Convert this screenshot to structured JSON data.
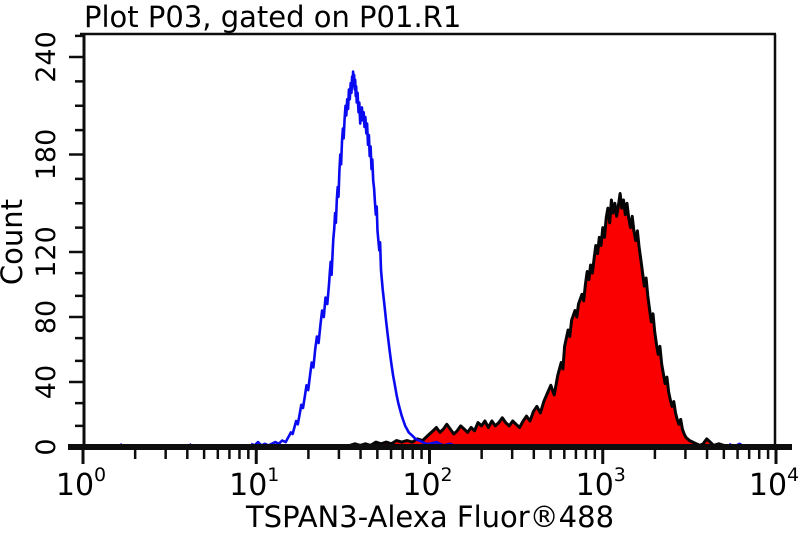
{
  "title": "Plot P03, gated on P01.R1",
  "colors": {
    "background": "#ffffff",
    "axis": "#0d0d0d",
    "control_line": "#0a0af0",
    "sample_fill": "#fa0000",
    "sample_outline": "#050505",
    "text": "#000000"
  },
  "chart_data": {
    "type": "area",
    "subtype": "flow-cytometry-histogram-overlay",
    "title": "Plot P03, gated on P01.R1",
    "xlabel": "TSPAN3-Alexa Fluor®488",
    "ylabel": "Count",
    "x_scale": "log10",
    "x_axis": {
      "range_exponents": [
        0,
        4
      ],
      "major_tick_exponents": [
        0,
        1,
        2,
        3,
        4
      ],
      "major_tick_labels": [
        "10",
        "10",
        "10",
        "10",
        "10"
      ],
      "major_tick_exponent_labels": [
        "0",
        "1",
        "2",
        "3",
        "4"
      ],
      "minor_tick_multipliers": [
        2,
        3,
        4,
        5,
        6,
        7,
        8,
        9
      ]
    },
    "y_axis": {
      "range": [
        0,
        255
      ],
      "major_ticks": [
        0,
        40,
        80,
        120,
        180,
        240
      ],
      "major_tick_labels": [
        "0",
        "40",
        "80",
        "120",
        "180",
        "240"
      ],
      "minor_ticks": [
        13,
        27,
        53,
        67,
        93,
        107,
        135,
        150,
        165,
        195,
        210,
        225,
        253
      ]
    },
    "grid": false,
    "legend": "none",
    "series": [
      {
        "name": "control-open-histogram",
        "style": "open",
        "line_color": "#0a0af0",
        "fill": "none",
        "peak": {
          "x_value": 36,
          "count": 231
        },
        "points_logx_count": [
          [
            0.0,
            0
          ],
          [
            0.2,
            0
          ],
          [
            0.215,
            2
          ],
          [
            0.23,
            0
          ],
          [
            0.6,
            0
          ],
          [
            0.615,
            2
          ],
          [
            0.63,
            0
          ],
          [
            0.95,
            0
          ],
          [
            0.97,
            2
          ],
          [
            0.99,
            1
          ],
          [
            1.01,
            3
          ],
          [
            1.03,
            1
          ],
          [
            1.05,
            2
          ],
          [
            1.07,
            1
          ],
          [
            1.09,
            2
          ],
          [
            1.11,
            3
          ],
          [
            1.13,
            2
          ],
          [
            1.15,
            4
          ],
          [
            1.17,
            3
          ],
          [
            1.18,
            5
          ],
          [
            1.19,
            7
          ],
          [
            1.2,
            9
          ],
          [
            1.21,
            8
          ],
          [
            1.22,
            12
          ],
          [
            1.23,
            16
          ],
          [
            1.24,
            14
          ],
          [
            1.25,
            20
          ],
          [
            1.26,
            26
          ],
          [
            1.27,
            24
          ],
          [
            1.28,
            31
          ],
          [
            1.29,
            38
          ],
          [
            1.3,
            35
          ],
          [
            1.31,
            44
          ],
          [
            1.32,
            52
          ],
          [
            1.33,
            49
          ],
          [
            1.34,
            60
          ],
          [
            1.35,
            68
          ],
          [
            1.36,
            64
          ],
          [
            1.37,
            75
          ],
          [
            1.38,
            84
          ],
          [
            1.39,
            80
          ],
          [
            1.4,
            92
          ],
          [
            1.41,
            88
          ],
          [
            1.42,
            100
          ],
          [
            1.425,
            108
          ],
          [
            1.43,
            114
          ],
          [
            1.435,
            106
          ],
          [
            1.44,
            118
          ],
          [
            1.445,
            128
          ],
          [
            1.45,
            134
          ],
          [
            1.455,
            144
          ],
          [
            1.46,
            138
          ],
          [
            1.465,
            152
          ],
          [
            1.47,
            160
          ],
          [
            1.475,
            154
          ],
          [
            1.48,
            170
          ],
          [
            1.485,
            180
          ],
          [
            1.49,
            174
          ],
          [
            1.495,
            188
          ],
          [
            1.5,
            196
          ],
          [
            1.505,
            190
          ],
          [
            1.51,
            202
          ],
          [
            1.515,
            210
          ],
          [
            1.52,
            204
          ],
          [
            1.525,
            214
          ],
          [
            1.53,
            208
          ],
          [
            1.535,
            220
          ],
          [
            1.54,
            214
          ],
          [
            1.545,
            224
          ],
          [
            1.55,
            218
          ],
          [
            1.553,
            228
          ],
          [
            1.556,
            222
          ],
          [
            1.559,
            231
          ],
          [
            1.562,
            225
          ],
          [
            1.565,
            229
          ],
          [
            1.568,
            220
          ],
          [
            1.571,
            226
          ],
          [
            1.574,
            216
          ],
          [
            1.577,
            222
          ],
          [
            1.58,
            212
          ],
          [
            1.585,
            218
          ],
          [
            1.59,
            206
          ],
          [
            1.595,
            212
          ],
          [
            1.6,
            199
          ],
          [
            1.605,
            205
          ],
          [
            1.61,
            209
          ],
          [
            1.615,
            201
          ],
          [
            1.62,
            206
          ],
          [
            1.625,
            197
          ],
          [
            1.63,
            203
          ],
          [
            1.635,
            193
          ],
          [
            1.64,
            199
          ],
          [
            1.645,
            186
          ],
          [
            1.65,
            192
          ],
          [
            1.655,
            179
          ],
          [
            1.66,
            185
          ],
          [
            1.665,
            171
          ],
          [
            1.67,
            177
          ],
          [
            1.675,
            164
          ],
          [
            1.68,
            159
          ],
          [
            1.685,
            151
          ],
          [
            1.69,
            143
          ],
          [
            1.695,
            148
          ],
          [
            1.7,
            133
          ],
          [
            1.71,
            121
          ],
          [
            1.715,
            126
          ],
          [
            1.72,
            109
          ],
          [
            1.73,
            97
          ],
          [
            1.74,
            87
          ],
          [
            1.75,
            77
          ],
          [
            1.76,
            68
          ],
          [
            1.77,
            59
          ],
          [
            1.78,
            51
          ],
          [
            1.79,
            44
          ],
          [
            1.8,
            38
          ],
          [
            1.81,
            32
          ],
          [
            1.82,
            27
          ],
          [
            1.83,
            23
          ],
          [
            1.84,
            19
          ],
          [
            1.85,
            16
          ],
          [
            1.86,
            13
          ],
          [
            1.87,
            11
          ],
          [
            1.88,
            9
          ],
          [
            1.9,
            7
          ],
          [
            1.92,
            5
          ],
          [
            1.94,
            4
          ],
          [
            1.96,
            3
          ],
          [
            1.98,
            2
          ],
          [
            2.0,
            2
          ],
          [
            2.04,
            3
          ],
          [
            2.08,
            1
          ],
          [
            2.12,
            2
          ],
          [
            2.16,
            0
          ],
          [
            2.2,
            0
          ],
          [
            3.7,
            0
          ],
          [
            3.73,
            2
          ],
          [
            3.755,
            0
          ],
          [
            3.79,
            2
          ],
          [
            3.82,
            0
          ],
          [
            4.0,
            0
          ]
        ]
      },
      {
        "name": "tspan3-filled-histogram",
        "style": "filled",
        "line_color": "#050505",
        "fill": "#fa0000",
        "peak": {
          "x_value": 1250,
          "count": 156
        },
        "points_logx_count": [
          [
            1.5,
            0
          ],
          [
            1.54,
            1
          ],
          [
            1.57,
            2
          ],
          [
            1.6,
            1
          ],
          [
            1.63,
            2
          ],
          [
            1.66,
            1
          ],
          [
            1.69,
            3
          ],
          [
            1.72,
            2
          ],
          [
            1.75,
            3
          ],
          [
            1.78,
            2
          ],
          [
            1.81,
            4
          ],
          [
            1.84,
            3
          ],
          [
            1.87,
            4
          ],
          [
            1.9,
            3
          ],
          [
            1.93,
            5
          ],
          [
            1.96,
            4
          ],
          [
            2.0,
            8
          ],
          [
            2.02,
            10
          ],
          [
            2.04,
            12
          ],
          [
            2.06,
            9
          ],
          [
            2.08,
            11
          ],
          [
            2.1,
            14
          ],
          [
            2.12,
            11
          ],
          [
            2.14,
            8
          ],
          [
            2.16,
            10
          ],
          [
            2.18,
            13
          ],
          [
            2.2,
            11
          ],
          [
            2.22,
            9
          ],
          [
            2.24,
            12
          ],
          [
            2.26,
            10
          ],
          [
            2.28,
            15
          ],
          [
            2.3,
            13
          ],
          [
            2.32,
            16
          ],
          [
            2.34,
            12
          ],
          [
            2.36,
            16
          ],
          [
            2.38,
            13
          ],
          [
            2.4,
            15
          ],
          [
            2.42,
            18
          ],
          [
            2.44,
            15
          ],
          [
            2.46,
            13
          ],
          [
            2.48,
            16
          ],
          [
            2.5,
            14
          ],
          [
            2.52,
            12
          ],
          [
            2.54,
            16
          ],
          [
            2.56,
            19
          ],
          [
            2.58,
            16
          ],
          [
            2.6,
            22
          ],
          [
            2.62,
            25
          ],
          [
            2.64,
            21
          ],
          [
            2.66,
            28
          ],
          [
            2.68,
            33
          ],
          [
            2.7,
            38
          ],
          [
            2.72,
            32
          ],
          [
            2.74,
            44
          ],
          [
            2.76,
            52
          ],
          [
            2.77,
            48
          ],
          [
            2.78,
            62
          ],
          [
            2.8,
            72
          ],
          [
            2.81,
            68
          ],
          [
            2.82,
            78
          ],
          [
            2.84,
            84
          ],
          [
            2.85,
            80
          ],
          [
            2.86,
            88
          ],
          [
            2.88,
            94
          ],
          [
            2.89,
            90
          ],
          [
            2.9,
            100
          ],
          [
            2.91,
            108
          ],
          [
            2.92,
            103
          ],
          [
            2.93,
            112
          ],
          [
            2.94,
            107
          ],
          [
            2.95,
            116
          ],
          [
            2.96,
            124
          ],
          [
            2.97,
            119
          ],
          [
            2.98,
            129
          ],
          [
            2.99,
            124
          ],
          [
            3.0,
            135
          ],
          [
            3.01,
            129
          ],
          [
            3.02,
            141
          ],
          [
            3.03,
            147
          ],
          [
            3.04,
            138
          ],
          [
            3.05,
            152
          ],
          [
            3.06,
            144
          ],
          [
            3.07,
            150
          ],
          [
            3.08,
            142
          ],
          [
            3.09,
            148
          ],
          [
            3.1,
            156
          ],
          [
            3.11,
            147
          ],
          [
            3.12,
            152
          ],
          [
            3.13,
            143
          ],
          [
            3.14,
            150
          ],
          [
            3.15,
            141
          ],
          [
            3.16,
            135
          ],
          [
            3.17,
            142
          ],
          [
            3.18,
            133
          ],
          [
            3.19,
            127
          ],
          [
            3.2,
            133
          ],
          [
            3.21,
            123
          ],
          [
            3.22,
            115
          ],
          [
            3.23,
            107
          ],
          [
            3.24,
            99
          ],
          [
            3.25,
            104
          ],
          [
            3.26,
            93
          ],
          [
            3.27,
            85
          ],
          [
            3.28,
            77
          ],
          [
            3.29,
            82
          ],
          [
            3.3,
            71
          ],
          [
            3.31,
            63
          ],
          [
            3.32,
            57
          ],
          [
            3.33,
            62
          ],
          [
            3.34,
            51
          ],
          [
            3.35,
            45
          ],
          [
            3.36,
            39
          ],
          [
            3.37,
            43
          ],
          [
            3.38,
            34
          ],
          [
            3.39,
            29
          ],
          [
            3.4,
            25
          ],
          [
            3.41,
            28
          ],
          [
            3.42,
            21
          ],
          [
            3.43,
            17
          ],
          [
            3.44,
            14
          ],
          [
            3.45,
            17
          ],
          [
            3.46,
            11
          ],
          [
            3.47,
            8
          ],
          [
            3.48,
            6
          ],
          [
            3.5,
            4
          ],
          [
            3.52,
            3
          ],
          [
            3.54,
            2
          ],
          [
            3.56,
            1
          ],
          [
            3.58,
            2
          ],
          [
            3.6,
            5
          ],
          [
            3.62,
            3
          ],
          [
            3.64,
            1
          ],
          [
            3.67,
            2
          ],
          [
            3.7,
            1
          ],
          [
            3.74,
            0
          ],
          [
            3.8,
            0
          ]
        ]
      }
    ]
  }
}
